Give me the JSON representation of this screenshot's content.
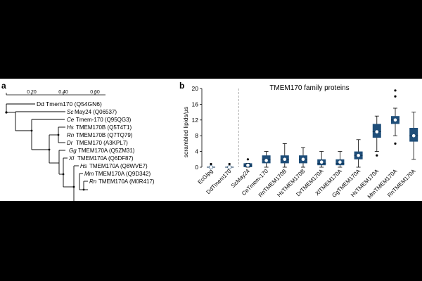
{
  "panels": [
    {
      "letter": "a"
    },
    {
      "letter": "b"
    }
  ],
  "tree": {
    "scale_ticks": [
      "0.20",
      "0.40",
      "0.60"
    ],
    "leaves": [
      {
        "species": "Dd",
        "name": "Tmem170 (Q54GN6)"
      },
      {
        "species": "Sc",
        "name": "May24 (Q06537)"
      },
      {
        "species": "Ce",
        "name": "Tmem-170 (Q95QG3)"
      },
      {
        "species": "Hs",
        "name": "TMEM170B (Q5T4T1)"
      },
      {
        "species": "Rn",
        "name": "TMEM170B (Q7TQ79)"
      },
      {
        "species": "Dr",
        "name": "TMEM170 (A3KPL7)"
      },
      {
        "species": "Gg",
        "name": "TMEM170A (Q5ZM31)"
      },
      {
        "species": "Xl",
        "name": "TMEM170A (Q6DF87)"
      },
      {
        "species": "Hs",
        "name": "TMEM170A (Q8WVE7)"
      },
      {
        "species": "Mm",
        "name": "TMEM170A (Q9D342)"
      },
      {
        "species": "Rn",
        "name": "TMEM170A (M0R417)"
      }
    ]
  },
  "chart_data": {
    "type": "box",
    "title": "TMEM170 family proteins",
    "ylabel": "scrambled lipids/µs",
    "xlabel": "",
    "ylim": [
      0,
      20
    ],
    "yticks": [
      0,
      4,
      8,
      12,
      16,
      20
    ],
    "control_divider_after": 2,
    "colors": {
      "box": "#1f4e79",
      "median_marker": "#ffffff",
      "divider": "#999999"
    },
    "categories": [
      "EcGlpg",
      "DdTmem170",
      "ScMay24",
      "CeTmem-170",
      "RnTMEM170B",
      "HsTMEM170B",
      "DrTMEM170A",
      "XlTMEM170A",
      "GgTMEM170A",
      "HsTMEM170A",
      "MmTMEM170A",
      "RnTMEM170A"
    ],
    "boxes": [
      {
        "q1": 0,
        "median": 0,
        "q3": 0.1,
        "whislo": 0,
        "whishi": 0.1,
        "mean": 0,
        "fliers": [
          0.8
        ]
      },
      {
        "q1": 0,
        "median": 0,
        "q3": 0.1,
        "whislo": 0,
        "whishi": 0.1,
        "mean": 0,
        "fliers": [
          0.8
        ]
      },
      {
        "q1": 0,
        "median": 0.5,
        "q3": 1.0,
        "whislo": 0,
        "whishi": 1.0,
        "mean": 0.5,
        "fliers": [
          2.0
        ]
      },
      {
        "q1": 1.0,
        "median": 2.0,
        "q3": 3.0,
        "whislo": 0,
        "whishi": 4.0,
        "mean": 1.7,
        "fliers": []
      },
      {
        "q1": 1.0,
        "median": 2.0,
        "q3": 3.0,
        "whislo": 0,
        "whishi": 6.0,
        "mean": 2.0,
        "fliers": []
      },
      {
        "q1": 1.0,
        "median": 2.0,
        "q3": 3.0,
        "whislo": 0,
        "whishi": 5.0,
        "mean": 2.0,
        "fliers": []
      },
      {
        "q1": 0.5,
        "median": 1.0,
        "q3": 2.0,
        "whislo": 0,
        "whishi": 4.0,
        "mean": 1.3,
        "fliers": []
      },
      {
        "q1": 0.5,
        "median": 1.0,
        "q3": 2.0,
        "whislo": 0,
        "whishi": 4.0,
        "mean": 1.3,
        "fliers": []
      },
      {
        "q1": 2.0,
        "median": 3.0,
        "q3": 4.0,
        "whislo": 0,
        "whishi": 7.0,
        "mean": 3.0,
        "fliers": []
      },
      {
        "q1": 7.5,
        "median": 9.0,
        "q3": 11.0,
        "whislo": 4.0,
        "whishi": 13.0,
        "mean": 9.0,
        "fliers": [
          3.0
        ]
      },
      {
        "q1": 11.0,
        "median": 12.0,
        "q3": 13.0,
        "whislo": 8.0,
        "whishi": 15.0,
        "mean": 12.0,
        "fliers": [
          6.0,
          18.0,
          19.5
        ]
      },
      {
        "q1": 6.5,
        "median": 8.0,
        "q3": 10.0,
        "whislo": 2.0,
        "whishi": 14.0,
        "mean": 8.0,
        "fliers": []
      }
    ]
  }
}
